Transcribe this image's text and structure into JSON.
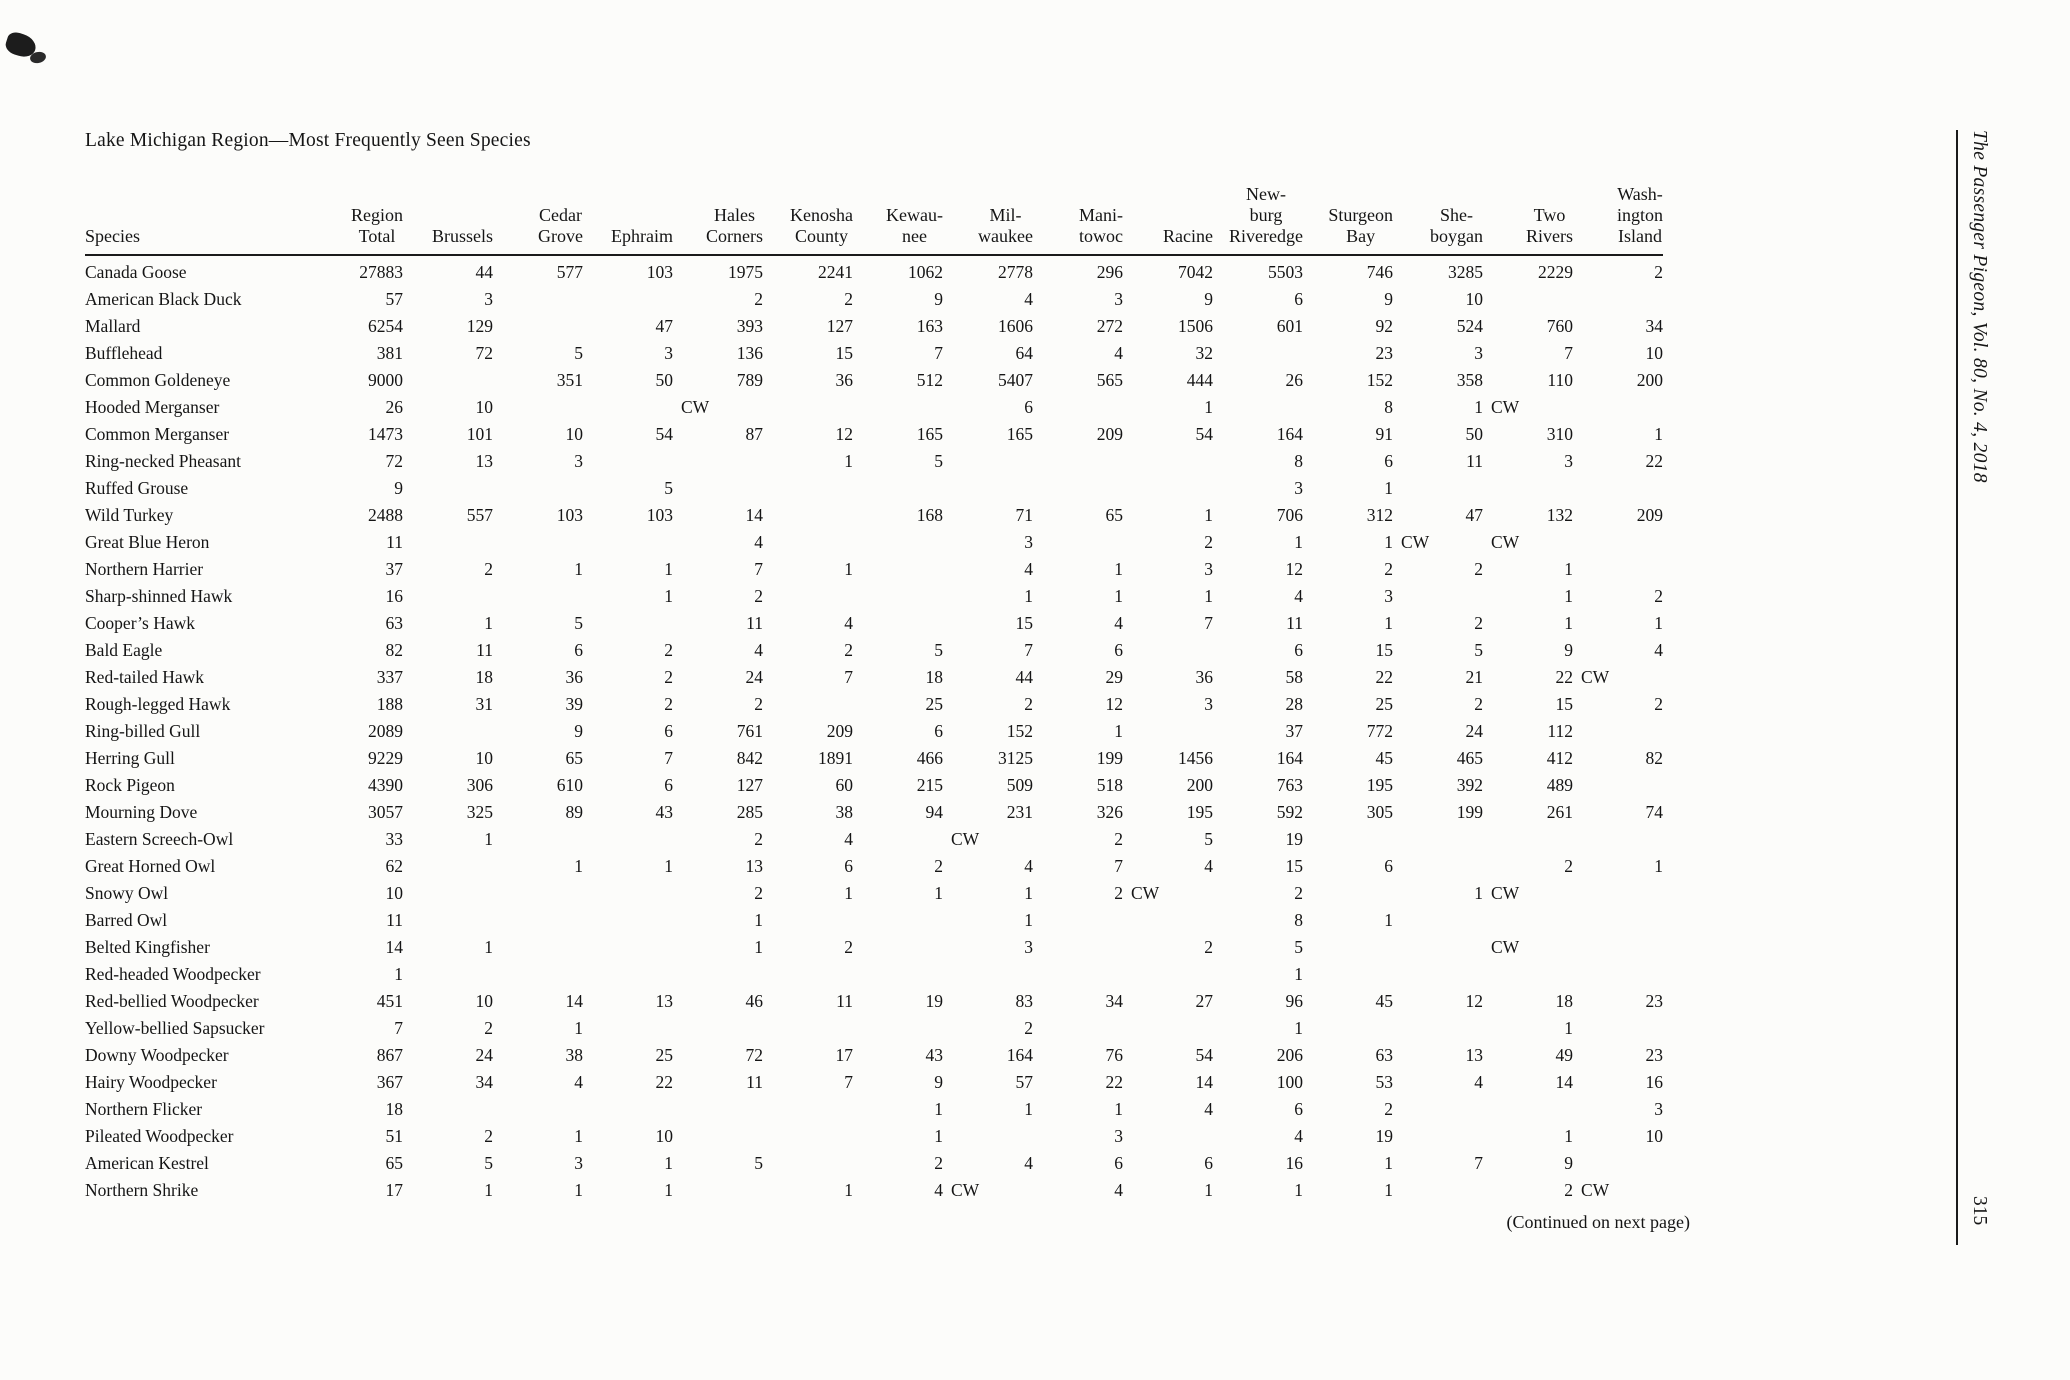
{
  "page": {
    "title": "Lake Michigan Region—Most Frequently Seen Species",
    "continued_note": "(Continued on next page)",
    "journal_sidebar": "The Passenger Pigeon, Vol. 80, No. 4, 2018",
    "page_number": "315",
    "text_color": "#151515",
    "background_color": "#fcfcfa"
  },
  "table": {
    "columns": [
      "Species",
      "Region\nTotal",
      "Brussels",
      "Cedar\nGrove",
      "Ephraim",
      "Hales\nCorners",
      "Kenosha\nCounty",
      "Kewau-\nnee",
      "Mil-\nwaukee",
      "Mani-\ntowoc",
      "Racine",
      "New-\nburg\nRiveredge",
      "Sturgeon\nBay",
      "She-\nboygan",
      "Two\nRivers",
      "Wash-\nington\nIsland"
    ],
    "count_week_code": "CW",
    "rows": [
      {
        "species": "Canada  Goose",
        "values": [
          "27883",
          "44",
          "577",
          "103",
          "1975",
          "2241",
          "1062",
          "2778",
          "296",
          "7042",
          "5503",
          "746",
          "3285",
          "2229",
          "2"
        ]
      },
      {
        "species": "American  Black Duck",
        "values": [
          "57",
          "3",
          "",
          "",
          "2",
          "2",
          "9",
          "4",
          "3",
          "9",
          "6",
          "9",
          "10",
          "",
          ""
        ]
      },
      {
        "species": "Mallard",
        "values": [
          "6254",
          "129",
          "",
          "47",
          "393",
          "127",
          "163",
          "1606",
          "272",
          "1506",
          "601",
          "92",
          "524",
          "760",
          "34"
        ]
      },
      {
        "species": "Bufflehead",
        "values": [
          "381",
          "72",
          "5",
          "3",
          "136",
          "15",
          "7",
          "64",
          "4",
          "32",
          "",
          "23",
          "3",
          "7",
          "10"
        ]
      },
      {
        "species": "Common Goldeneye",
        "values": [
          "9000",
          "",
          "351",
          "50",
          "789",
          "36",
          "512",
          "5407",
          "565",
          "444",
          "26",
          "152",
          "358",
          "110",
          "200"
        ]
      },
      {
        "species": "Hooded Merganser",
        "values": [
          "26",
          "10",
          "",
          "",
          "CW",
          "",
          "",
          "6",
          "",
          "1",
          "",
          "8",
          "1",
          "CW",
          ""
        ]
      },
      {
        "species": "Common Merganser",
        "values": [
          "1473",
          "101",
          "10",
          "54",
          "87",
          "12",
          "165",
          "165",
          "209",
          "54",
          "164",
          "91",
          "50",
          "310",
          "1"
        ]
      },
      {
        "species": "Ring-necked Pheasant",
        "values": [
          "72",
          "13",
          "3",
          "",
          "",
          "1",
          "5",
          "",
          "",
          "",
          "8",
          "6",
          "11",
          "3",
          "22"
        ]
      },
      {
        "species": "Ruffed Grouse",
        "values": [
          "9",
          "",
          "",
          "5",
          "",
          "",
          "",
          "",
          "",
          "",
          "3",
          "1",
          "",
          "",
          ""
        ]
      },
      {
        "species": "Wild Turkey",
        "values": [
          "2488",
          "557",
          "103",
          "103",
          "14",
          "",
          "168",
          "71",
          "65",
          "1",
          "706",
          "312",
          "47",
          "132",
          "209"
        ]
      },
      {
        "species": "Great Blue Heron",
        "values": [
          "11",
          "",
          "",
          "",
          "4",
          "",
          "",
          "3",
          "",
          "2",
          "1",
          "1",
          "CW",
          "CW",
          ""
        ]
      },
      {
        "species": "Northern Harrier",
        "values": [
          "37",
          "2",
          "1",
          "1",
          "7",
          "1",
          "",
          "4",
          "1",
          "3",
          "12",
          "2",
          "2",
          "1",
          ""
        ]
      },
      {
        "species": "Sharp-shinned Hawk",
        "values": [
          "16",
          "",
          "",
          "1",
          "2",
          "",
          "",
          "1",
          "1",
          "1",
          "4",
          "3",
          "",
          "1",
          "2"
        ]
      },
      {
        "species": "Cooper’s Hawk",
        "values": [
          "63",
          "1",
          "5",
          "",
          "11",
          "4",
          "",
          "15",
          "4",
          "7",
          "11",
          "1",
          "2",
          "1",
          "1"
        ]
      },
      {
        "species": "Bald Eagle",
        "values": [
          "82",
          "11",
          "6",
          "2",
          "4",
          "2",
          "5",
          "7",
          "6",
          "",
          "6",
          "15",
          "5",
          "9",
          "4"
        ]
      },
      {
        "species": "Red-tailed Hawk",
        "values": [
          "337",
          "18",
          "36",
          "2",
          "24",
          "7",
          "18",
          "44",
          "29",
          "36",
          "58",
          "22",
          "21",
          "22",
          "CW"
        ]
      },
      {
        "species": "Rough-legged  Hawk",
        "values": [
          "188",
          "31",
          "39",
          "2",
          "2",
          "",
          "25",
          "2",
          "12",
          "3",
          "28",
          "25",
          "2",
          "15",
          "2"
        ]
      },
      {
        "species": "Ring-billed Gull",
        "values": [
          "2089",
          "",
          "9",
          "6",
          "761",
          "209",
          "6",
          "152",
          "1",
          "",
          "37",
          "772",
          "24",
          "112",
          ""
        ]
      },
      {
        "species": "Herring  Gull",
        "values": [
          "9229",
          "10",
          "65",
          "7",
          "842",
          "1891",
          "466",
          "3125",
          "199",
          "1456",
          "164",
          "45",
          "465",
          "412",
          "82"
        ]
      },
      {
        "species": "Rock Pigeon",
        "values": [
          "4390",
          "306",
          "610",
          "6",
          "127",
          "60",
          "215",
          "509",
          "518",
          "200",
          "763",
          "195",
          "392",
          "489",
          ""
        ]
      },
      {
        "species": "Mourning  Dove",
        "values": [
          "3057",
          "325",
          "89",
          "43",
          "285",
          "38",
          "94",
          "231",
          "326",
          "195",
          "592",
          "305",
          "199",
          "261",
          "74"
        ]
      },
      {
        "species": "Eastern Screech-Owl",
        "values": [
          "33",
          "1",
          "",
          "",
          "2",
          "4",
          "",
          "CW",
          "2",
          "5",
          "19",
          "",
          "",
          "",
          ""
        ]
      },
      {
        "species": "Great Horned  Owl",
        "values": [
          "62",
          "",
          "1",
          "1",
          "13",
          "6",
          "2",
          "4",
          "7",
          "4",
          "15",
          "6",
          "",
          "2",
          "1"
        ]
      },
      {
        "species": "Snowy Owl",
        "values": [
          "10",
          "",
          "",
          "",
          "2",
          "1",
          "1",
          "1",
          "2",
          "CW",
          "2",
          "",
          "1",
          "CW",
          ""
        ]
      },
      {
        "species": "Barred Owl",
        "values": [
          "11",
          "",
          "",
          "",
          "1",
          "",
          "",
          "1",
          "",
          "",
          "8",
          "1",
          "",
          "",
          ""
        ]
      },
      {
        "species": "Belted Kingfisher",
        "values": [
          "14",
          "1",
          "",
          "",
          "1",
          "2",
          "",
          "3",
          "",
          "2",
          "5",
          "",
          "",
          "CW",
          ""
        ]
      },
      {
        "species": "Red-headed Woodpecker",
        "values": [
          "1",
          "",
          "",
          "",
          "",
          "",
          "",
          "",
          "",
          "",
          "1",
          "",
          "",
          "",
          ""
        ]
      },
      {
        "species": "Red-bellied  Woodpecker",
        "values": [
          "451",
          "10",
          "14",
          "13",
          "46",
          "11",
          "19",
          "83",
          "34",
          "27",
          "96",
          "45",
          "12",
          "18",
          "23"
        ]
      },
      {
        "species": "Yellow-bellied Sapsucker",
        "values": [
          "7",
          "2",
          "1",
          "",
          "",
          "",
          "",
          "2",
          "",
          "",
          "1",
          "",
          "",
          "1",
          ""
        ]
      },
      {
        "species": "Downy Woodpecker",
        "values": [
          "867",
          "24",
          "38",
          "25",
          "72",
          "17",
          "43",
          "164",
          "76",
          "54",
          "206",
          "63",
          "13",
          "49",
          "23"
        ]
      },
      {
        "species": "Hairy Woodpecker",
        "values": [
          "367",
          "34",
          "4",
          "22",
          "11",
          "7",
          "9",
          "57",
          "22",
          "14",
          "100",
          "53",
          "4",
          "14",
          "16"
        ]
      },
      {
        "species": "Northern Flicker",
        "values": [
          "18",
          "",
          "",
          "",
          "",
          "",
          "1",
          "1",
          "1",
          "4",
          "6",
          "2",
          "",
          "",
          "3"
        ]
      },
      {
        "species": "Pileated Woodpecker",
        "values": [
          "51",
          "2",
          "1",
          "10",
          "",
          "",
          "1",
          "",
          "3",
          "",
          "4",
          "19",
          "",
          "1",
          "10"
        ]
      },
      {
        "species": "American Kestrel",
        "values": [
          "65",
          "5",
          "3",
          "1",
          "5",
          "",
          "2",
          "4",
          "6",
          "6",
          "16",
          "1",
          "7",
          "9",
          ""
        ]
      },
      {
        "species": "Northern  Shrike",
        "values": [
          "17",
          "1",
          "1",
          "1",
          "",
          "1",
          "4",
          "CW",
          "4",
          "1",
          "1",
          "1",
          "",
          "2",
          "CW"
        ]
      }
    ]
  }
}
